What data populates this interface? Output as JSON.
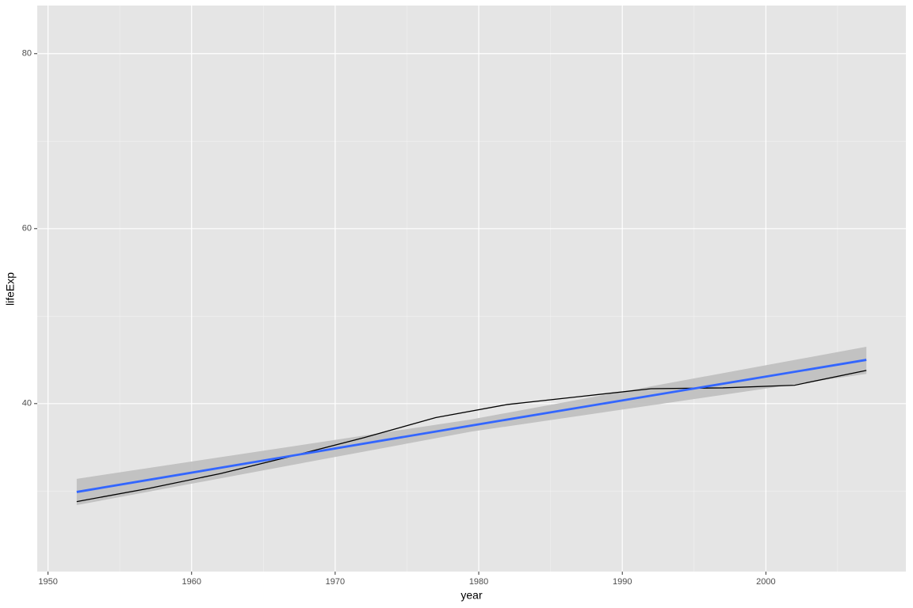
{
  "chart_data": {
    "type": "line",
    "x_label": "year",
    "y_label": "lifeExp",
    "x": [
      1952,
      1957,
      1962,
      1967,
      1972,
      1977,
      1982,
      1987,
      1992,
      1997,
      2002,
      2007
    ],
    "values": [
      28.8,
      30.3,
      32.0,
      34.0,
      36.1,
      38.4,
      39.9,
      40.8,
      41.7,
      41.8,
      42.1,
      43.8
    ],
    "color": "#000000",
    "smooth": {
      "x": [
        1952,
        1979.5,
        2007
      ],
      "values": [
        29.9,
        37.5,
        45.0
      ],
      "lower": [
        28.4,
        36.8,
        43.4
      ],
      "upper": [
        31.4,
        38.2,
        46.5
      ],
      "color": "#3366ff",
      "fill": "#bebebe"
    },
    "xlim": [
      1949.25,
      2009.75
    ],
    "xticks": [
      1950,
      1960,
      1970,
      1980,
      1990,
      2000
    ],
    "xminor": [
      1955,
      1965,
      1975,
      1985,
      1995,
      2005
    ],
    "ylim": [
      20.8,
      85.5
    ],
    "yticks": [
      40,
      60,
      80
    ],
    "yminor": [
      30,
      50,
      70
    ],
    "grid": true
  }
}
